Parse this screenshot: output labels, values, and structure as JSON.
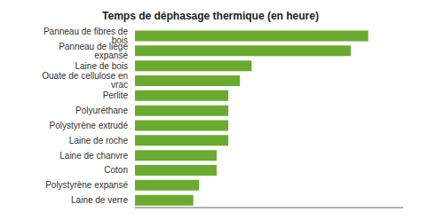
{
  "chart_data": {
    "type": "bar",
    "title": "Temps de déphasage thermique (en heure)",
    "categories": [
      "Panneau de fibres de bois",
      "Panneau de liège expansé",
      "Laine de bois",
      "Ouate de cellulose en vrac",
      "Perlite",
      "Polyuréthane",
      "Polystyrène extrudé",
      "Laine de roche",
      "Laine de chanvre",
      "Coton",
      "Polystyrène expansé",
      "Laine de verre"
    ],
    "values": [
      20.0,
      18.5,
      10.0,
      9.0,
      8.0,
      8.0,
      8.0,
      8.0,
      7.0,
      7.0,
      5.5,
      5.0
    ],
    "color": "#6aaa2e",
    "orientation": "horizontal",
    "xlim": [
      0,
      23
    ],
    "xticks": [],
    "grid": false,
    "tick_labels": "y"
  }
}
